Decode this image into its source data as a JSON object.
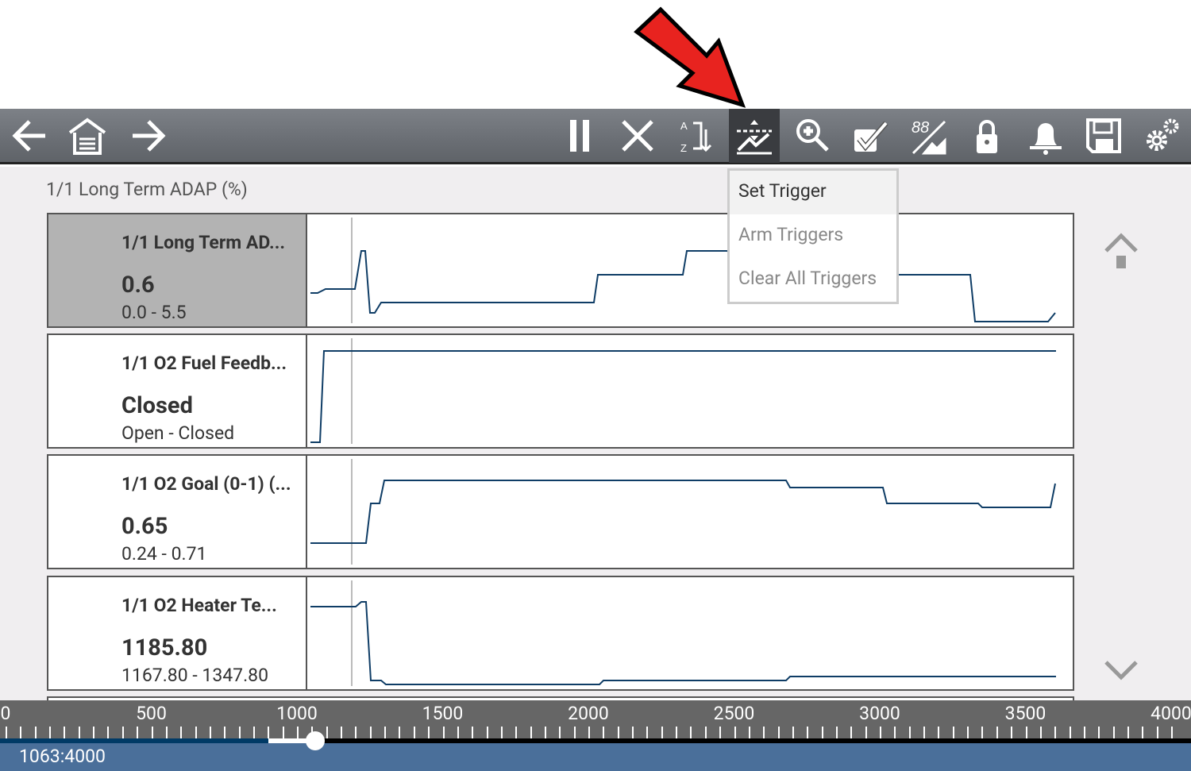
{
  "toolbar": {
    "left": [
      "back-icon",
      "home-icon",
      "forward-icon"
    ],
    "right": [
      "pause-icon",
      "clear-icon",
      "sort-icon",
      "trigger-icon",
      "zoom-icon",
      "select-icon",
      "graph-view-icon",
      "lock-icon",
      "alert-icon",
      "save-icon",
      "settings-icon"
    ],
    "active": "trigger-icon"
  },
  "title": "1/1 Long Term ADAP (%)",
  "panels": [
    {
      "name": "1/1 Long Term AD...",
      "value": "0.6",
      "range": "0.0 - 5.5"
    },
    {
      "name": "1/1 O2 Fuel Feedb...",
      "value": "Closed",
      "range": "Open - Closed"
    },
    {
      "name": "1/1 O2 Goal (0-1) (...",
      "value": "0.65",
      "range": "0.24 - 0.71"
    },
    {
      "name": "1/1 O2 Heater Te...",
      "value": "1185.80",
      "range": "1167.80 - 1347.80"
    }
  ],
  "menu": {
    "items": [
      "Set Trigger",
      "Arm Triggers",
      "Clear All Triggers"
    ]
  },
  "ruler": {
    "labels": [
      "0",
      "500",
      "1000",
      "1500",
      "2000",
      "2500",
      "3000",
      "3500",
      "4000"
    ],
    "min": 0,
    "max": 4000,
    "position": 1063
  },
  "position_label": "1063:4000",
  "colors": {
    "trace": "#0f3d66",
    "highlight_arrow": "#e8231f",
    "footer": "#4a6f9a"
  }
}
